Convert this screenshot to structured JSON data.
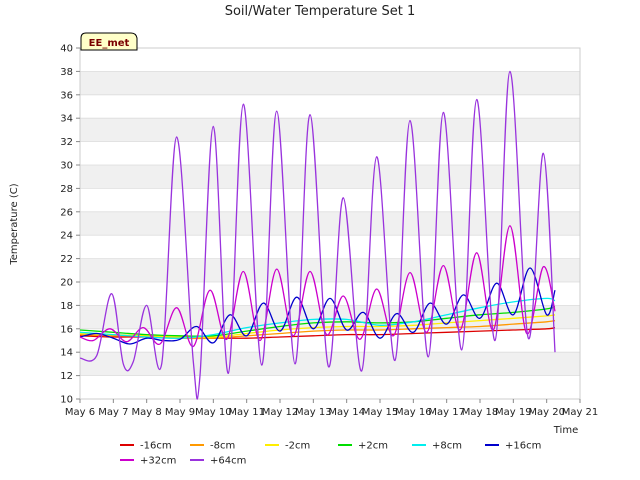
{
  "chart_data": {
    "type": "line",
    "title": "Soil/Water Temperature Set 1",
    "xlabel": "Time",
    "ylabel": "Temperature (C)",
    "station_label": "EE_met",
    "ylim": [
      10,
      40
    ],
    "yticks": [
      10,
      12,
      14,
      16,
      18,
      20,
      22,
      24,
      26,
      28,
      30,
      32,
      34,
      36,
      38,
      40
    ],
    "xlim": [
      6,
      21
    ],
    "xticks": [
      {
        "v": 6,
        "label": "May 6"
      },
      {
        "v": 7,
        "label": "May 7"
      },
      {
        "v": 8,
        "label": "May 8"
      },
      {
        "v": 9,
        "label": "May 9"
      },
      {
        "v": 10,
        "label": "May 10"
      },
      {
        "v": 11,
        "label": "May 11"
      },
      {
        "v": 12,
        "label": "May 12"
      },
      {
        "v": 13,
        "label": "May 13"
      },
      {
        "v": 14,
        "label": "May 14"
      },
      {
        "v": 15,
        "label": "May 15"
      },
      {
        "v": 16,
        "label": "May 16"
      },
      {
        "v": 17,
        "label": "May 17"
      },
      {
        "v": 18,
        "label": "May 18"
      },
      {
        "v": 19,
        "label": "May 19"
      },
      {
        "v": 20,
        "label": "May 20"
      },
      {
        "v": 21,
        "label": "May 21"
      }
    ],
    "grid": "horizontal bands",
    "legend_position": "bottom",
    "series": [
      {
        "name": "-16cm",
        "color": "#dd0000",
        "x": [
          6.0,
          7.0,
          8.0,
          9.0,
          10.0,
          11.0,
          12.0,
          13.0,
          14.0,
          15.0,
          16.0,
          17.0,
          18.0,
          19.0,
          20.0,
          20.25
        ],
        "y": [
          15.4,
          15.3,
          15.3,
          15.2,
          15.2,
          15.2,
          15.3,
          15.4,
          15.5,
          15.5,
          15.6,
          15.7,
          15.8,
          15.9,
          16.0,
          16.1
        ]
      },
      {
        "name": "-8cm",
        "color": "#ff9900",
        "x": [
          6.0,
          7.0,
          8.0,
          9.0,
          10.0,
          11.0,
          12.0,
          13.0,
          14.0,
          15.0,
          16.0,
          17.0,
          18.0,
          19.0,
          20.0,
          20.25
        ],
        "y": [
          15.5,
          15.4,
          15.4,
          15.2,
          15.2,
          15.4,
          15.6,
          15.8,
          15.9,
          15.9,
          16.0,
          16.1,
          16.2,
          16.4,
          16.6,
          16.7
        ]
      },
      {
        "name": "-2cm",
        "color": "#ffee00",
        "x": [
          6.0,
          7.0,
          8.0,
          9.0,
          10.0,
          11.0,
          12.0,
          13.0,
          14.0,
          15.0,
          16.0,
          17.0,
          18.0,
          19.0,
          20.0,
          20.25
        ],
        "y": [
          15.6,
          15.5,
          15.4,
          15.3,
          15.3,
          15.6,
          15.9,
          16.1,
          16.2,
          16.2,
          16.3,
          16.5,
          16.7,
          16.9,
          17.1,
          17.2
        ]
      },
      {
        "name": "+2cm",
        "color": "#00dd00",
        "x": [
          6.0,
          7.0,
          8.0,
          9.0,
          10.0,
          11.0,
          12.0,
          13.0,
          14.0,
          15.0,
          16.0,
          17.0,
          18.0,
          19.0,
          20.0,
          20.25
        ],
        "y": [
          15.9,
          15.7,
          15.5,
          15.4,
          15.4,
          15.8,
          16.2,
          16.5,
          16.6,
          16.5,
          16.6,
          16.9,
          17.2,
          17.4,
          17.7,
          17.9
        ]
      },
      {
        "name": "+8cm",
        "color": "#00eeee",
        "x": [
          6.0,
          7.0,
          8.0,
          9.0,
          10.0,
          11.0,
          12.0,
          13.0,
          14.0,
          15.0,
          16.0,
          17.0,
          18.0,
          19.0,
          20.0,
          20.25
        ],
        "y": [
          15.7,
          15.5,
          15.3,
          15.2,
          15.5,
          16.1,
          16.5,
          16.8,
          16.8,
          16.3,
          16.6,
          17.2,
          17.8,
          18.3,
          18.6,
          18.4
        ]
      },
      {
        "name": "+16cm",
        "color": "#0000cc",
        "x": [
          6.0,
          6.5,
          7.0,
          7.5,
          8.0,
          8.5,
          9.0,
          9.5,
          10.0,
          10.5,
          11.0,
          11.5,
          12.0,
          12.5,
          13.0,
          13.5,
          14.0,
          14.5,
          15.0,
          15.5,
          16.0,
          16.5,
          17.0,
          17.5,
          18.0,
          18.5,
          19.0,
          19.5,
          20.0,
          20.25
        ],
        "y": [
          15.3,
          15.6,
          15.2,
          14.7,
          15.2,
          15.0,
          15.1,
          16.2,
          14.8,
          17.2,
          15.4,
          18.2,
          15.8,
          18.7,
          16.0,
          18.6,
          15.9,
          17.4,
          15.2,
          17.3,
          15.7,
          18.2,
          16.4,
          18.9,
          16.9,
          19.9,
          17.2,
          21.2,
          17.2,
          19.3
        ]
      },
      {
        "name": "+32cm",
        "color": "#cc00cc",
        "x": [
          6.0,
          6.4,
          6.9,
          7.4,
          7.9,
          8.4,
          8.9,
          9.4,
          9.9,
          10.4,
          10.9,
          11.4,
          11.9,
          12.4,
          12.9,
          13.4,
          13.9,
          14.4,
          14.9,
          15.4,
          15.9,
          16.4,
          16.9,
          17.4,
          17.9,
          18.4,
          18.9,
          19.4,
          19.9,
          20.25
        ],
        "y": [
          15.3,
          15.0,
          16.0,
          14.9,
          16.1,
          14.7,
          17.8,
          14.5,
          19.3,
          15.1,
          20.9,
          15.0,
          21.1,
          15.4,
          20.9,
          15.5,
          18.8,
          15.1,
          19.4,
          15.4,
          20.8,
          15.7,
          21.4,
          15.9,
          22.5,
          15.9,
          24.8,
          15.6,
          21.3,
          17.5
        ]
      },
      {
        "name": "+64cm",
        "color": "#9933dd",
        "x": [
          6.0,
          6.5,
          6.95,
          7.3,
          7.6,
          8.0,
          8.45,
          8.9,
          9.4,
          9.6,
          10.0,
          10.45,
          10.9,
          11.45,
          11.9,
          12.45,
          12.9,
          13.45,
          13.9,
          14.45,
          14.9,
          15.45,
          15.9,
          16.45,
          16.9,
          17.45,
          17.9,
          18.45,
          18.9,
          19.45,
          19.9,
          20.25
        ],
        "y": [
          13.5,
          13.7,
          19.0,
          13.0,
          13.2,
          18.0,
          13.0,
          32.4,
          13.2,
          12.0,
          33.3,
          12.2,
          35.2,
          12.9,
          34.6,
          13.0,
          34.3,
          12.8,
          27.2,
          12.4,
          30.7,
          13.3,
          33.8,
          13.6,
          34.5,
          14.2,
          35.6,
          15.0,
          38.0,
          15.2,
          31.0,
          14.0
        ]
      }
    ]
  }
}
